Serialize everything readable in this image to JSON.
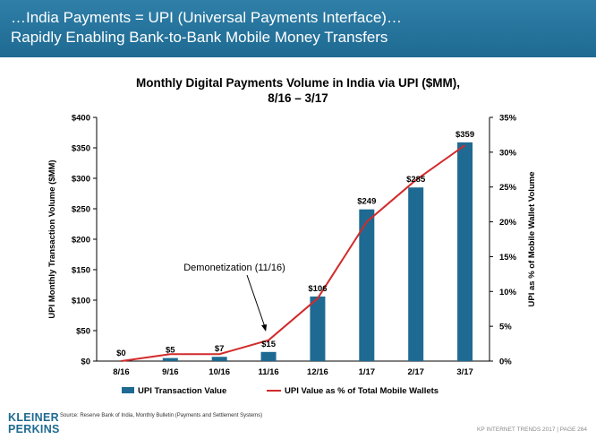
{
  "header": {
    "line1": "…India Payments = UPI (Universal Payments Interface)…",
    "line2": "Rapidly Enabling Bank-to-Bank Mobile Money Transfers"
  },
  "chart_data": {
    "type": "bar",
    "title": "Monthly Digital Payments Volume in India via UPI ($MM),",
    "subtitle": "8/16 – 3/17",
    "categories": [
      "8/16",
      "9/16",
      "10/16",
      "11/16",
      "12/16",
      "1/17",
      "2/17",
      "3/17"
    ],
    "ylabel": "UPI Monthly Transaction Volume ($MM)",
    "y2label": "UPI as % of Mobile Wallet Volume",
    "ylim": [
      0,
      400
    ],
    "yticks": [
      "$0",
      "$50",
      "$100",
      "$150",
      "$200",
      "$250",
      "$300",
      "$350",
      "$400"
    ],
    "y2lim": [
      0,
      35
    ],
    "y2ticks": [
      "0%",
      "5%",
      "10%",
      "15%",
      "20%",
      "25%",
      "30%",
      "35%"
    ],
    "series": [
      {
        "name": "UPI Transaction Value",
        "type": "bar",
        "axis": "left",
        "color": "#1e6a92",
        "values": [
          0,
          5,
          7,
          15,
          106,
          249,
          285,
          359
        ],
        "labels": [
          "$0",
          "$5",
          "$7",
          "$15",
          "$106",
          "$249",
          "$285",
          "$359"
        ]
      },
      {
        "name": "UPI Value as % of Total Mobile Wallets",
        "type": "line",
        "axis": "right",
        "color": "#d22b2b",
        "values": [
          0.0,
          1.0,
          1.0,
          3.0,
          9.0,
          20.0,
          26.0,
          31.0
        ]
      }
    ],
    "annotation": {
      "text": "Demonetization (11/16)",
      "category": "11/16"
    },
    "legend_placement": "bottom",
    "grid": false
  },
  "footer": {
    "source": "Source: Reserve Bank of India, Monthly Bulletin (Payments and Settlement Systems)",
    "logo_line1": "KLEINER",
    "logo_line2": "PERKINS",
    "page_info": "KP INTERNET TRENDS 2017  |  PAGE 264"
  }
}
